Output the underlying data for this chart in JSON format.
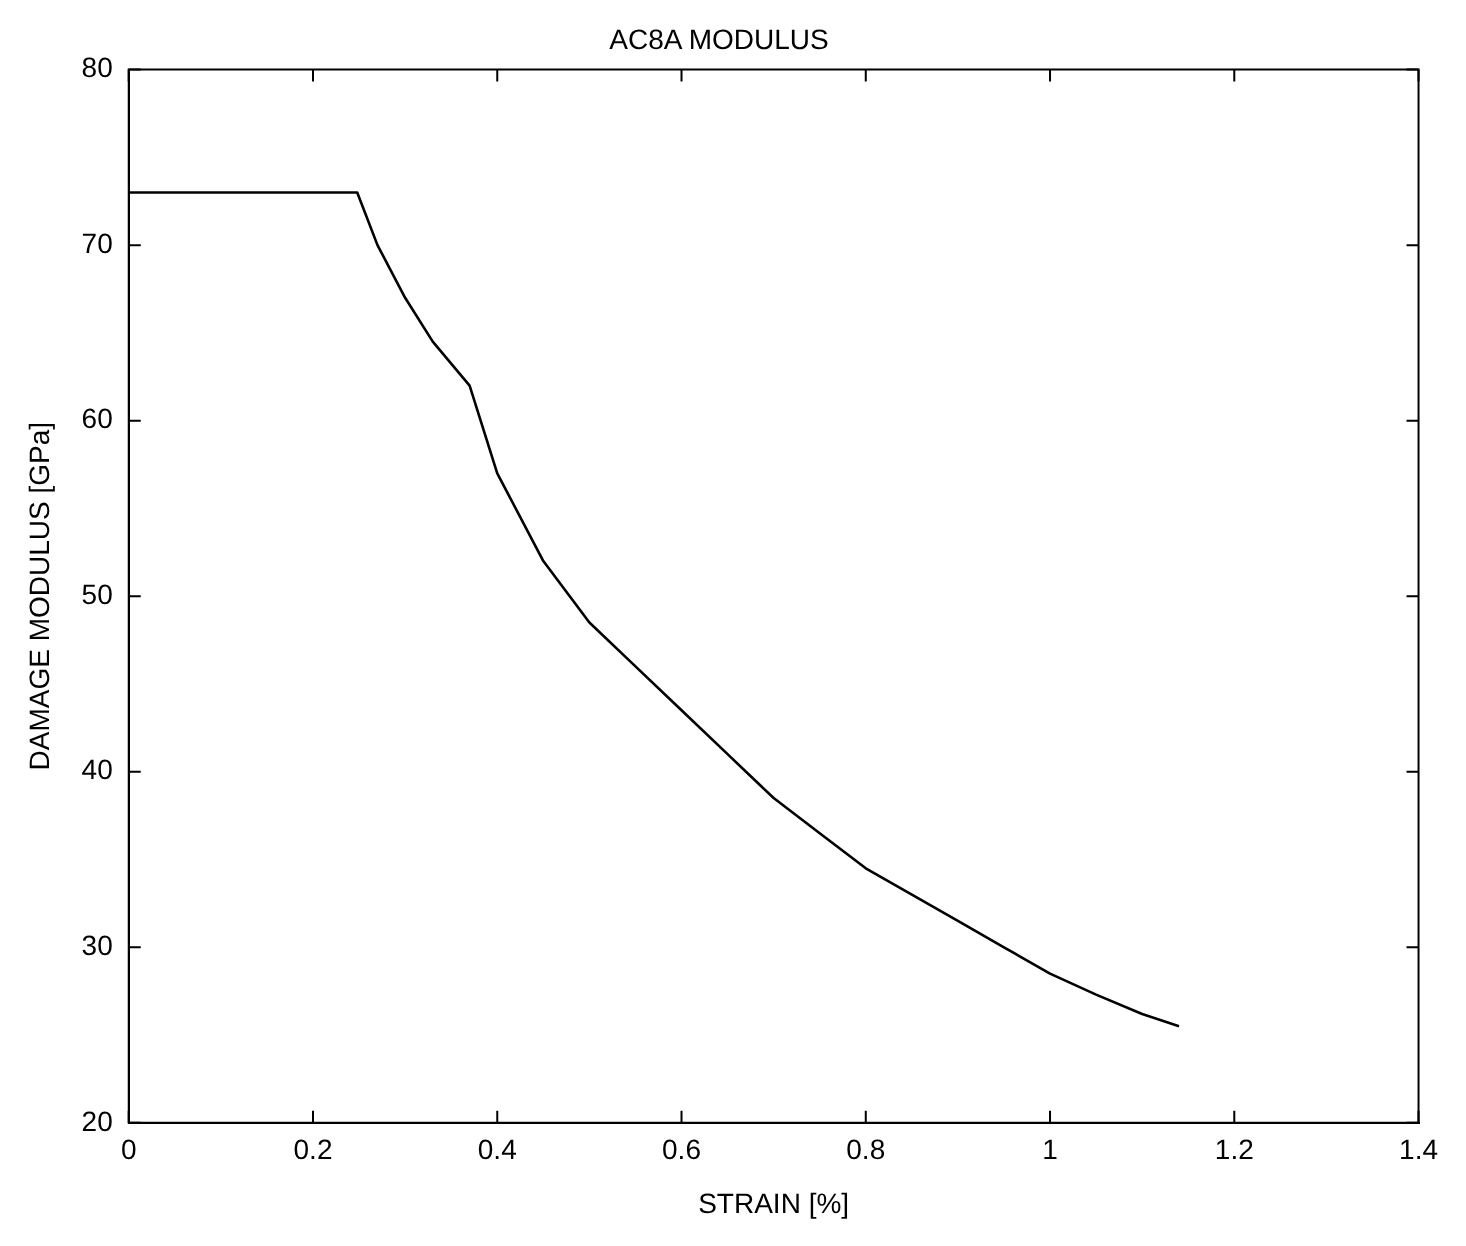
{
  "chart_data": {
    "type": "line",
    "title": "AC8A MODULUS",
    "xlabel": "STRAIN [%]",
    "ylabel": "DAMAGE MODULUS [GPa]",
    "x": [
      0,
      0.1,
      0.2,
      0.248,
      0.27,
      0.3,
      0.33,
      0.37,
      0.4,
      0.45,
      0.5,
      0.55,
      0.6,
      0.65,
      0.7,
      0.75,
      0.8,
      0.85,
      0.9,
      0.95,
      1.0,
      1.05,
      1.1,
      1.14
    ],
    "series": [
      {
        "color": "#000000",
        "values": [
          73,
          73,
          73,
          73,
          70,
          67,
          64.5,
          62,
          57,
          52,
          48.5,
          46,
          43.5,
          41,
          38.5,
          36.5,
          34.5,
          33,
          31.5,
          30,
          28.5,
          27.3,
          26.2,
          25.5
        ]
      }
    ],
    "xlim": [
      0,
      1.4
    ],
    "xticks": [
      0,
      0.2,
      0.4,
      0.6,
      0.8,
      1,
      1.2,
      1.4
    ],
    "ylim": [
      20,
      80
    ],
    "yticks": [
      20,
      30,
      40,
      50,
      60,
      70,
      80
    ],
    "grid": false,
    "legend": false,
    "marker": "none",
    "line_style": "solid"
  }
}
